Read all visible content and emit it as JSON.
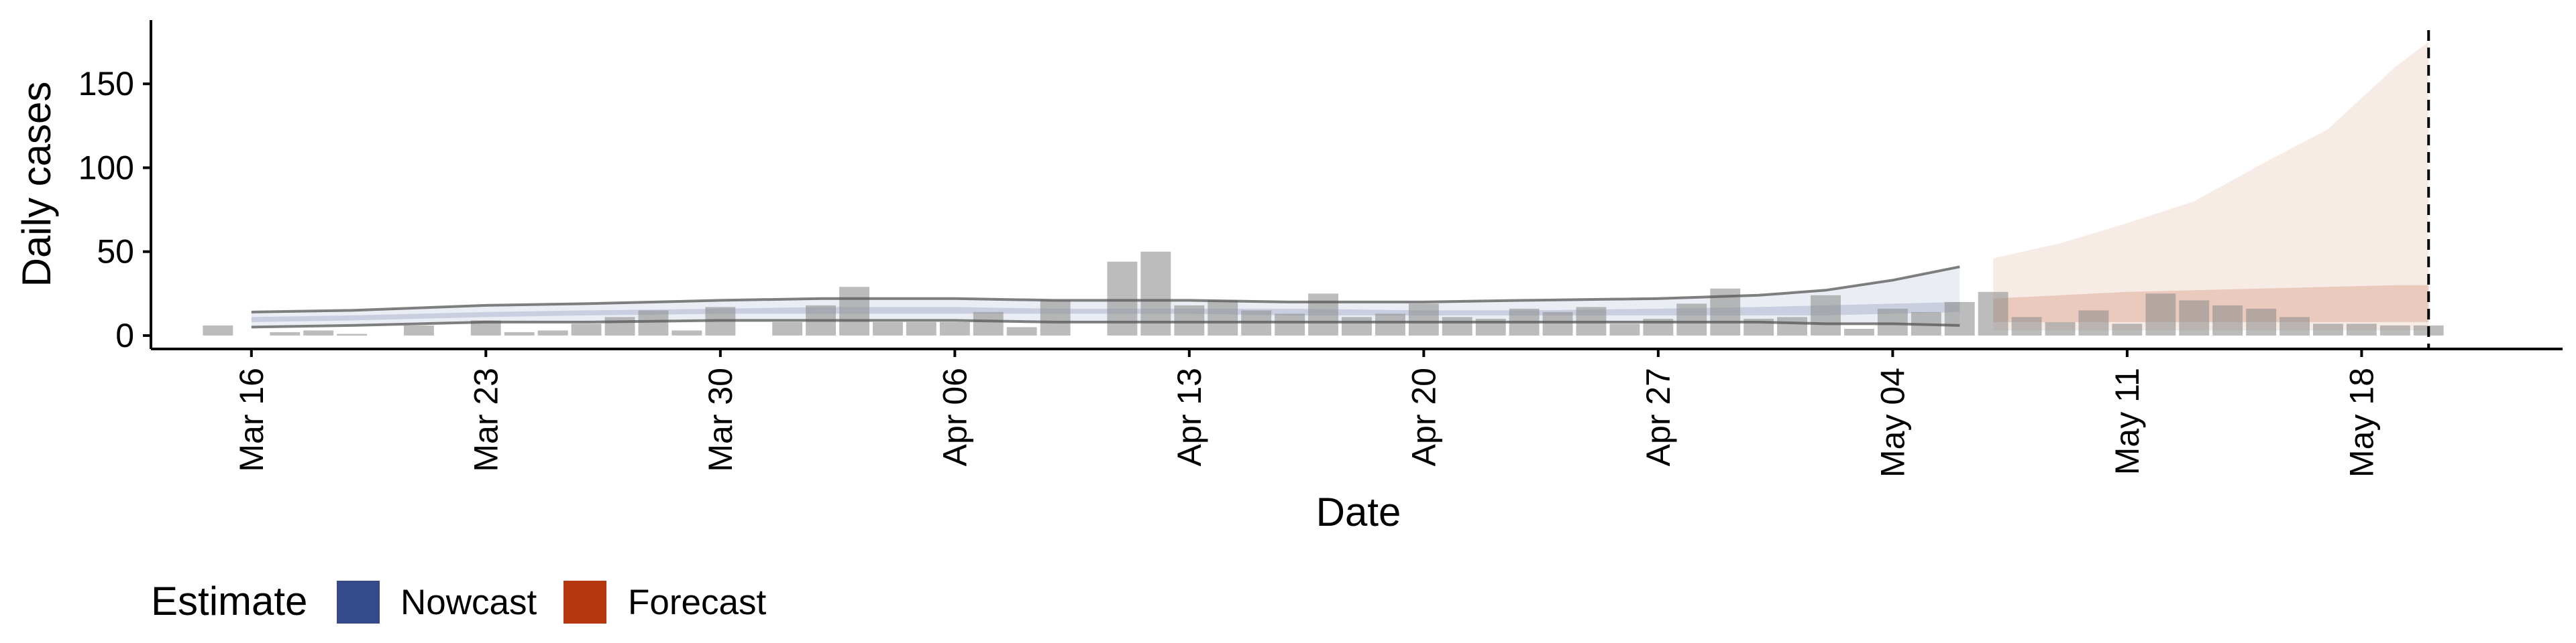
{
  "chart_data": {
    "type": "bar",
    "title": "",
    "xlabel": "Date",
    "ylabel": "Daily cases",
    "y_ticks": [
      0,
      50,
      100,
      150
    ],
    "ylim": [
      -8,
      188
    ],
    "x_start": "2020-03-13",
    "x_end": "2020-05-24",
    "x_ticks": [
      {
        "date": "2020-03-16",
        "label": "Mar 16"
      },
      {
        "date": "2020-03-23",
        "label": "Mar 23"
      },
      {
        "date": "2020-03-30",
        "label": "Mar 30"
      },
      {
        "date": "2020-04-06",
        "label": "Apr 06"
      },
      {
        "date": "2020-04-13",
        "label": "Apr 13"
      },
      {
        "date": "2020-04-20",
        "label": "Apr 20"
      },
      {
        "date": "2020-04-27",
        "label": "Apr 27"
      },
      {
        "date": "2020-05-04",
        "label": "May 04"
      },
      {
        "date": "2020-05-11",
        "label": "May 11"
      },
      {
        "date": "2020-05-18",
        "label": "May 18"
      }
    ],
    "grid": false,
    "legend": {
      "title": "Estimate",
      "position": "bottom-left",
      "entries": [
        {
          "name": "Nowcast",
          "color": "#354a88"
        },
        {
          "name": "Forecast",
          "color": "#b5370d"
        }
      ]
    },
    "colors": {
      "bar": "#8f8f8f",
      "nowcast": "#354a88",
      "forecast": "#b5370d",
      "line": "#555555",
      "reference_line": "#000000"
    },
    "reported_cases": {
      "dates": [
        "2020-03-15",
        "2020-03-16",
        "2020-03-17",
        "2020-03-18",
        "2020-03-19",
        "2020-03-20",
        "2020-03-21",
        "2020-03-22",
        "2020-03-23",
        "2020-03-24",
        "2020-03-25",
        "2020-03-26",
        "2020-03-27",
        "2020-03-28",
        "2020-03-29",
        "2020-03-30",
        "2020-03-31",
        "2020-04-01",
        "2020-04-02",
        "2020-04-03",
        "2020-04-04",
        "2020-04-05",
        "2020-04-06",
        "2020-04-07",
        "2020-04-08",
        "2020-04-09",
        "2020-04-10",
        "2020-04-11",
        "2020-04-12",
        "2020-04-13",
        "2020-04-14",
        "2020-04-15",
        "2020-04-16",
        "2020-04-17",
        "2020-04-18",
        "2020-04-19",
        "2020-04-20",
        "2020-04-21",
        "2020-04-22",
        "2020-04-23",
        "2020-04-24",
        "2020-04-25",
        "2020-04-26",
        "2020-04-27",
        "2020-04-28",
        "2020-04-29",
        "2020-04-30",
        "2020-05-01",
        "2020-05-02",
        "2020-05-03",
        "2020-05-04",
        "2020-05-05",
        "2020-05-06",
        "2020-05-07",
        "2020-05-08",
        "2020-05-09",
        "2020-05-10",
        "2020-05-11",
        "2020-05-12",
        "2020-05-13",
        "2020-05-14",
        "2020-05-15",
        "2020-05-16",
        "2020-05-17",
        "2020-05-18",
        "2020-05-19",
        "2020-05-20"
      ],
      "values": [
        6,
        0,
        2,
        3,
        1,
        0,
        6,
        0,
        9,
        2,
        3,
        7,
        11,
        15,
        3,
        17,
        0,
        8,
        18,
        29,
        8,
        8,
        8,
        14,
        5,
        21,
        0,
        44,
        50,
        18,
        21,
        15,
        13,
        25,
        11,
        13,
        19,
        11,
        10,
        16,
        14,
        17,
        7,
        10,
        19,
        28,
        10,
        11,
        24,
        4,
        16,
        14,
        20,
        26,
        11,
        8,
        15,
        7,
        25,
        21,
        18,
        16,
        11,
        7,
        7,
        6,
        6
      ]
    },
    "nowcast": {
      "dates": [
        "2020-03-16",
        "2020-03-19",
        "2020-03-23",
        "2020-03-26",
        "2020-03-30",
        "2020-04-02",
        "2020-04-06",
        "2020-04-09",
        "2020-04-13",
        "2020-04-16",
        "2020-04-20",
        "2020-04-23",
        "2020-04-27",
        "2020-04-30",
        "2020-05-02",
        "2020-05-04",
        "2020-05-06"
      ],
      "lower_90": [
        5,
        6,
        8,
        8,
        9,
        9,
        9,
        8,
        8,
        8,
        8,
        8,
        8,
        8,
        7,
        7,
        6
      ],
      "upper_90": [
        14,
        15,
        18,
        19,
        21,
        22,
        22,
        21,
        21,
        20,
        20,
        21,
        22,
        24,
        27,
        33,
        41
      ],
      "lower_50": [
        8,
        9,
        11,
        12,
        13,
        13,
        13,
        13,
        13,
        12,
        12,
        12,
        12,
        12,
        12,
        13,
        14
      ],
      "upper_50": [
        11,
        12,
        14,
        15,
        16,
        17,
        17,
        16,
        16,
        16,
        15,
        15,
        16,
        17,
        18,
        19,
        20
      ]
    },
    "forecast": {
      "dates": [
        "2020-05-07",
        "2020-05-09",
        "2020-05-11",
        "2020-05-13",
        "2020-05-15",
        "2020-05-17",
        "2020-05-19",
        "2020-05-20"
      ],
      "lower_90": [
        3,
        3,
        3,
        3,
        3,
        3,
        3,
        3
      ],
      "upper_90": [
        46,
        55,
        67,
        80,
        102,
        123,
        160,
        175
      ],
      "lower_50": [
        8,
        8,
        8,
        8,
        8,
        8,
        8,
        8
      ],
      "upper_50": [
        22,
        24,
        26,
        27,
        28,
        29,
        30,
        30
      ]
    },
    "reference_line_date": "2020-05-20"
  }
}
